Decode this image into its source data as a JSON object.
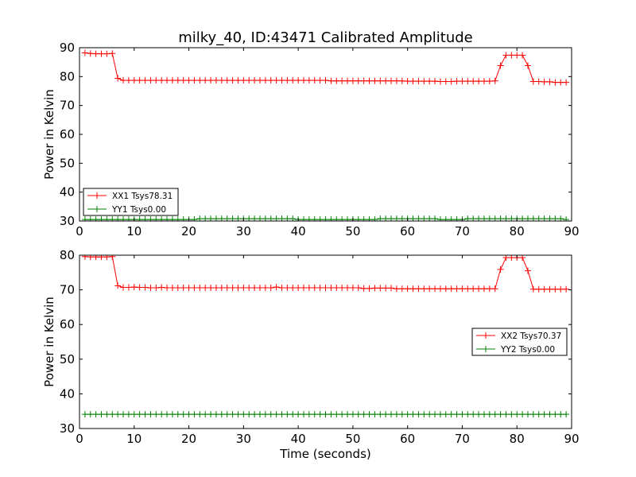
{
  "chart_data": [
    {
      "type": "line",
      "title": "milky_40, ID:43471 Calibrated Amplitude",
      "xlabel": "",
      "ylabel": "Power in Kelvin",
      "xlim": [
        0,
        90
      ],
      "ylim": [
        30,
        90
      ],
      "xticks": [
        0,
        10,
        20,
        30,
        40,
        50,
        60,
        70,
        80,
        90
      ],
      "yticks": [
        30,
        40,
        50,
        60,
        70,
        80,
        90
      ],
      "grid": false,
      "legend_position": "lower-left",
      "series": [
        {
          "name": "XX1 Tsys78.31",
          "color": "#ff0000",
          "marker": "plus",
          "x": [
            1,
            2,
            3,
            4,
            5,
            6,
            7,
            8,
            9,
            10,
            11,
            12,
            13,
            14,
            15,
            16,
            17,
            18,
            19,
            20,
            21,
            22,
            23,
            24,
            25,
            26,
            27,
            28,
            29,
            30,
            31,
            32,
            33,
            34,
            35,
            36,
            37,
            38,
            39,
            40,
            41,
            42,
            43,
            44,
            45,
            46,
            47,
            48,
            49,
            50,
            51,
            52,
            53,
            54,
            55,
            56,
            57,
            58,
            59,
            60,
            61,
            62,
            63,
            64,
            65,
            66,
            67,
            68,
            69,
            70,
            71,
            72,
            73,
            74,
            75,
            76,
            77,
            78,
            79,
            80,
            81,
            82,
            83,
            84,
            85,
            86,
            87,
            88,
            89
          ],
          "y": [
            88.2,
            88.0,
            87.9,
            87.9,
            87.9,
            88.0,
            79.4,
            78.7,
            78.7,
            78.7,
            78.7,
            78.7,
            78.7,
            78.7,
            78.7,
            78.7,
            78.7,
            78.7,
            78.7,
            78.7,
            78.7,
            78.7,
            78.7,
            78.7,
            78.7,
            78.7,
            78.7,
            78.7,
            78.7,
            78.7,
            78.7,
            78.7,
            78.7,
            78.7,
            78.7,
            78.7,
            78.7,
            78.7,
            78.7,
            78.7,
            78.7,
            78.7,
            78.7,
            78.7,
            78.7,
            78.5,
            78.5,
            78.5,
            78.5,
            78.5,
            78.5,
            78.5,
            78.5,
            78.5,
            78.5,
            78.5,
            78.5,
            78.5,
            78.5,
            78.4,
            78.4,
            78.4,
            78.4,
            78.4,
            78.4,
            78.3,
            78.3,
            78.3,
            78.4,
            78.4,
            78.4,
            78.4,
            78.4,
            78.4,
            78.4,
            78.5,
            83.8,
            87.4,
            87.4,
            87.4,
            87.4,
            83.8,
            78.3,
            78.3,
            78.2,
            78.2,
            78.0,
            78.0,
            78.0
          ]
        },
        {
          "name": "YY1 Tsys0.00",
          "color": "#008000",
          "marker": "plus",
          "x": [
            1,
            2,
            3,
            4,
            5,
            6,
            7,
            8,
            9,
            10,
            11,
            12,
            13,
            14,
            15,
            16,
            17,
            18,
            19,
            20,
            21,
            22,
            23,
            24,
            25,
            26,
            27,
            28,
            29,
            30,
            31,
            32,
            33,
            34,
            35,
            36,
            37,
            38,
            39,
            40,
            41,
            42,
            43,
            44,
            45,
            46,
            47,
            48,
            49,
            50,
            51,
            52,
            53,
            54,
            55,
            56,
            57,
            58,
            59,
            60,
            61,
            62,
            63,
            64,
            65,
            66,
            67,
            68,
            69,
            70,
            71,
            72,
            73,
            74,
            75,
            76,
            77,
            78,
            79,
            80,
            81,
            82,
            83,
            84,
            85,
            86,
            87,
            88,
            89
          ],
          "y": [
            30.5,
            30.5,
            30.5,
            30.5,
            30.5,
            30.5,
            30.5,
            30.5,
            30.5,
            30.5,
            30.5,
            30.5,
            30.5,
            30.5,
            30.5,
            30.5,
            30.5,
            30.5,
            30.5,
            30.5,
            30.5,
            30.8,
            30.8,
            30.8,
            30.8,
            30.8,
            30.8,
            30.8,
            30.8,
            30.8,
            30.8,
            30.8,
            30.8,
            30.8,
            30.8,
            30.8,
            30.8,
            30.8,
            30.8,
            30.5,
            30.5,
            30.5,
            30.5,
            30.5,
            30.5,
            30.5,
            30.5,
            30.5,
            30.5,
            30.5,
            30.5,
            30.5,
            30.5,
            30.5,
            30.8,
            30.8,
            30.8,
            30.8,
            30.8,
            30.8,
            30.8,
            30.8,
            30.8,
            30.8,
            30.8,
            30.5,
            30.5,
            30.5,
            30.5,
            30.5,
            30.8,
            30.8,
            30.8,
            30.8,
            30.8,
            30.8,
            30.8,
            30.8,
            30.8,
            30.8,
            30.8,
            30.8,
            30.8,
            30.8,
            30.8,
            30.8,
            30.8,
            30.8,
            30.5
          ]
        }
      ]
    },
    {
      "type": "line",
      "title": "",
      "xlabel": "Time (seconds)",
      "ylabel": "Power in Kelvin",
      "xlim": [
        0,
        90
      ],
      "ylim": [
        30,
        80
      ],
      "xticks": [
        0,
        10,
        20,
        30,
        40,
        50,
        60,
        70,
        80,
        90
      ],
      "yticks": [
        30,
        40,
        50,
        60,
        70,
        80
      ],
      "grid": false,
      "legend_position": "center-right",
      "series": [
        {
          "name": "XX2 Tsys70.37",
          "color": "#ff0000",
          "marker": "plus",
          "x": [
            1,
            2,
            3,
            4,
            5,
            6,
            7,
            8,
            9,
            10,
            11,
            12,
            13,
            14,
            15,
            16,
            17,
            18,
            19,
            20,
            21,
            22,
            23,
            24,
            25,
            26,
            27,
            28,
            29,
            30,
            31,
            32,
            33,
            34,
            35,
            36,
            37,
            38,
            39,
            40,
            41,
            42,
            43,
            44,
            45,
            46,
            47,
            48,
            49,
            50,
            51,
            52,
            53,
            54,
            55,
            56,
            57,
            58,
            59,
            60,
            61,
            62,
            63,
            64,
            65,
            66,
            67,
            68,
            69,
            70,
            71,
            72,
            73,
            74,
            75,
            76,
            77,
            78,
            79,
            80,
            81,
            82,
            83,
            84,
            85,
            86,
            87,
            88,
            89
          ],
          "y": [
            79.6,
            79.5,
            79.5,
            79.5,
            79.5,
            79.6,
            71.2,
            70.7,
            70.7,
            70.8,
            70.7,
            70.7,
            70.6,
            70.6,
            70.7,
            70.6,
            70.6,
            70.6,
            70.6,
            70.6,
            70.6,
            70.6,
            70.6,
            70.6,
            70.6,
            70.6,
            70.6,
            70.6,
            70.6,
            70.6,
            70.6,
            70.6,
            70.6,
            70.6,
            70.6,
            70.8,
            70.6,
            70.6,
            70.6,
            70.6,
            70.6,
            70.6,
            70.6,
            70.6,
            70.6,
            70.6,
            70.6,
            70.6,
            70.6,
            70.6,
            70.6,
            70.4,
            70.4,
            70.5,
            70.5,
            70.5,
            70.5,
            70.3,
            70.3,
            70.3,
            70.3,
            70.3,
            70.3,
            70.3,
            70.3,
            70.3,
            70.3,
            70.3,
            70.3,
            70.3,
            70.3,
            70.3,
            70.3,
            70.3,
            70.3,
            70.3,
            75.9,
            79.3,
            79.3,
            79.3,
            79.3,
            75.5,
            70.2,
            70.2,
            70.2,
            70.2,
            70.2,
            70.2,
            70.2
          ]
        },
        {
          "name": "YY2 Tsys0.00",
          "color": "#008000",
          "marker": "plus",
          "x": [
            1,
            2,
            3,
            4,
            5,
            6,
            7,
            8,
            9,
            10,
            11,
            12,
            13,
            14,
            15,
            16,
            17,
            18,
            19,
            20,
            21,
            22,
            23,
            24,
            25,
            26,
            27,
            28,
            29,
            30,
            31,
            32,
            33,
            34,
            35,
            36,
            37,
            38,
            39,
            40,
            41,
            42,
            43,
            44,
            45,
            46,
            47,
            48,
            49,
            50,
            51,
            52,
            53,
            54,
            55,
            56,
            57,
            58,
            59,
            60,
            61,
            62,
            63,
            64,
            65,
            66,
            67,
            68,
            69,
            70,
            71,
            72,
            73,
            74,
            75,
            76,
            77,
            78,
            79,
            80,
            81,
            82,
            83,
            84,
            85,
            86,
            87,
            88,
            89
          ],
          "y": [
            34.1,
            34.1,
            34.1,
            34.1,
            34.1,
            34.1,
            34.1,
            34.1,
            34.1,
            34.1,
            34.1,
            34.1,
            34.1,
            34.1,
            34.1,
            34.1,
            34.1,
            34.1,
            34.1,
            34.1,
            34.1,
            34.1,
            34.1,
            34.1,
            34.1,
            34.1,
            34.1,
            34.1,
            34.1,
            34.1,
            34.1,
            34.1,
            34.1,
            34.1,
            34.1,
            34.1,
            34.1,
            34.1,
            34.1,
            34.1,
            34.1,
            34.1,
            34.1,
            34.1,
            34.1,
            34.1,
            34.1,
            34.1,
            34.1,
            34.1,
            34.1,
            34.1,
            34.1,
            34.1,
            34.1,
            34.1,
            34.1,
            34.1,
            34.1,
            34.1,
            34.1,
            34.1,
            34.1,
            34.1,
            34.1,
            34.1,
            34.1,
            34.1,
            34.1,
            34.1,
            34.1,
            34.1,
            34.1,
            34.1,
            34.1,
            34.1,
            34.1,
            34.1,
            34.1,
            34.1,
            34.1,
            34.1,
            34.1,
            34.1,
            34.1,
            34.1,
            34.1,
            34.1,
            34.1
          ]
        }
      ]
    }
  ]
}
